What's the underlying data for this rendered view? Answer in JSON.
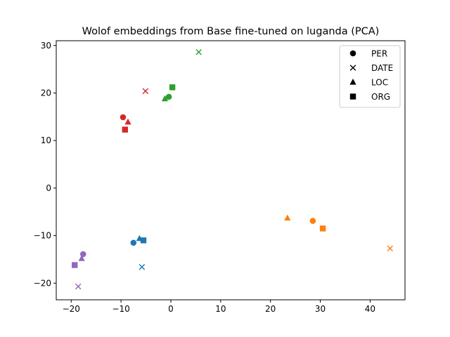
{
  "chart_data": {
    "type": "scatter",
    "title": "Wolof embeddings from Base fine-tuned on luganda (PCA)",
    "xlabel": "",
    "ylabel": "",
    "xlim": [
      -23,
      47
    ],
    "ylim": [
      -23.5,
      31
    ],
    "xticks": [
      -20,
      -10,
      0,
      10,
      20,
      30,
      40
    ],
    "yticks": [
      -20,
      -10,
      0,
      10,
      20,
      30
    ],
    "grid": false,
    "legend_position": "top-right",
    "legend": [
      {
        "label": "PER",
        "marker": "circle"
      },
      {
        "label": "DATE",
        "marker": "x"
      },
      {
        "label": "LOC",
        "marker": "triangle"
      },
      {
        "label": "ORG",
        "marker": "square"
      }
    ],
    "groups": [
      {
        "color": "#d62728",
        "points": [
          {
            "marker": "circle",
            "x": -9.6,
            "y": 14.9
          },
          {
            "marker": "x",
            "x": -5.1,
            "y": 20.4
          },
          {
            "marker": "triangle",
            "x": -8.6,
            "y": 13.9
          },
          {
            "marker": "square",
            "x": -9.2,
            "y": 12.3
          }
        ]
      },
      {
        "color": "#2ca02c",
        "points": [
          {
            "marker": "circle",
            "x": -0.4,
            "y": 19.2
          },
          {
            "marker": "x",
            "x": 5.6,
            "y": 28.6
          },
          {
            "marker": "triangle",
            "x": -1.2,
            "y": 18.8
          },
          {
            "marker": "square",
            "x": 0.3,
            "y": 21.2
          }
        ]
      },
      {
        "color": "#1f77b4",
        "points": [
          {
            "marker": "circle",
            "x": -7.5,
            "y": -11.5
          },
          {
            "marker": "x",
            "x": -5.8,
            "y": -16.6
          },
          {
            "marker": "triangle",
            "x": -6.3,
            "y": -10.6
          },
          {
            "marker": "square",
            "x": -5.5,
            "y": -11.0
          }
        ]
      },
      {
        "color": "#9467bd",
        "points": [
          {
            "marker": "circle",
            "x": -17.6,
            "y": -13.9
          },
          {
            "marker": "x",
            "x": -18.6,
            "y": -20.7
          },
          {
            "marker": "triangle",
            "x": -17.9,
            "y": -14.8
          },
          {
            "marker": "square",
            "x": -19.3,
            "y": -16.2
          }
        ]
      },
      {
        "color": "#ff7f0e",
        "points": [
          {
            "marker": "circle",
            "x": 28.5,
            "y": -6.9
          },
          {
            "marker": "x",
            "x": 44.0,
            "y": -12.7
          },
          {
            "marker": "triangle",
            "x": 23.4,
            "y": -6.3
          },
          {
            "marker": "square",
            "x": 30.5,
            "y": -8.5
          }
        ]
      }
    ]
  }
}
